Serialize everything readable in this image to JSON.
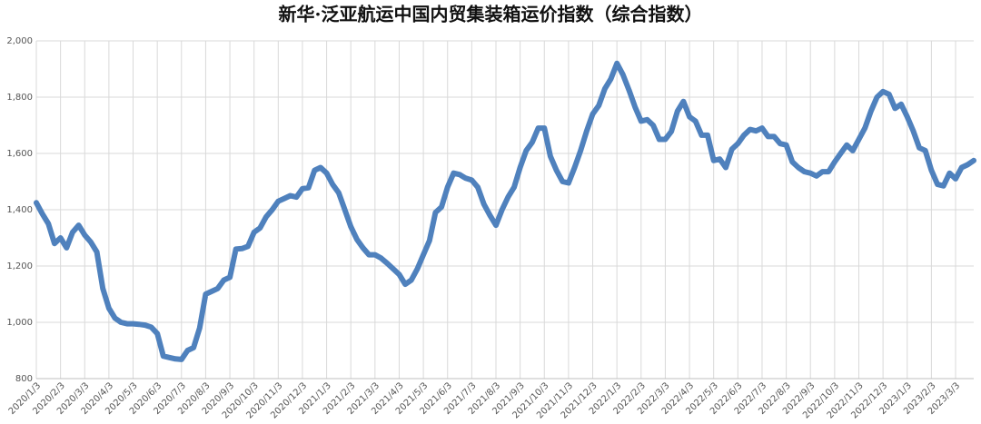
{
  "chart_data": {
    "type": "line",
    "title": "新华·泛亚航运中国内贸集装箱运价指数（综合指数）",
    "categories": [
      "2020/1/3",
      null,
      null,
      null,
      "2020/2/3",
      null,
      null,
      null,
      "2020/3/3",
      null,
      null,
      null,
      "2020/4/3",
      null,
      null,
      null,
      "2020/5/3",
      null,
      null,
      null,
      "2020/6/3",
      null,
      null,
      null,
      "2020/7/3",
      null,
      null,
      null,
      "2020/8/3",
      null,
      null,
      null,
      "2020/9/3",
      null,
      null,
      null,
      "2020/10/3",
      null,
      null,
      null,
      "2020/11/3",
      null,
      null,
      null,
      "2020/12/3",
      null,
      null,
      null,
      "2021/1/3",
      null,
      null,
      null,
      "2021/2/3",
      null,
      null,
      null,
      "2021/3/3",
      null,
      null,
      null,
      "2021/4/3",
      null,
      null,
      null,
      "2021/5/3",
      null,
      null,
      null,
      "2021/6/3",
      null,
      null,
      null,
      "2021/7/3",
      null,
      null,
      null,
      "2021/8/3",
      null,
      null,
      null,
      "2021/9/3",
      null,
      null,
      null,
      "2021/10/3",
      null,
      null,
      null,
      "2021/11/3",
      null,
      null,
      null,
      "2021/12/3",
      null,
      null,
      null,
      "2022/1/3",
      null,
      null,
      null,
      "2022/2/3",
      null,
      null,
      null,
      "2022/3/3",
      null,
      null,
      null,
      "2022/4/3",
      null,
      null,
      null,
      "2022/5/3",
      null,
      null,
      null,
      "2022/6/3",
      null,
      null,
      null,
      "2022/7/3",
      null,
      null,
      null,
      "2022/8/3",
      null,
      null,
      null,
      "2022/9/3",
      null,
      null,
      null,
      "2022/10/3",
      null,
      null,
      null,
      "2022/11/3",
      null,
      null,
      null,
      "2022/12/3",
      null,
      null,
      null,
      "2023/1/3",
      null,
      null,
      null,
      "2023/2/3",
      null,
      null,
      null,
      "2023/3/3",
      null,
      null,
      null
    ],
    "series": [
      {
        "name": "综合指数",
        "color": "#4f81bd",
        "values": [
          1425,
          1385,
          1350,
          1280,
          1300,
          1265,
          1320,
          1345,
          1310,
          1285,
          1250,
          1120,
          1050,
          1015,
          1000,
          995,
          995,
          993,
          990,
          983,
          960,
          880,
          875,
          870,
          868,
          900,
          910,
          980,
          1100,
          1110,
          1120,
          1150,
          1160,
          1260,
          1262,
          1270,
          1320,
          1335,
          1375,
          1400,
          1430,
          1440,
          1450,
          1445,
          1475,
          1478,
          1540,
          1550,
          1530,
          1490,
          1460,
          1400,
          1340,
          1295,
          1265,
          1240,
          1240,
          1228,
          1210,
          1190,
          1170,
          1135,
          1150,
          1190,
          1240,
          1290,
          1390,
          1410,
          1480,
          1530,
          1525,
          1512,
          1505,
          1480,
          1420,
          1380,
          1345,
          1400,
          1445,
          1480,
          1550,
          1610,
          1640,
          1690,
          1690,
          1590,
          1540,
          1500,
          1495,
          1550,
          1610,
          1680,
          1740,
          1770,
          1830,
          1865,
          1920,
          1880,
          1825,
          1765,
          1715,
          1720,
          1700,
          1650,
          1650,
          1678,
          1750,
          1785,
          1730,
          1715,
          1665,
          1665,
          1575,
          1580,
          1550,
          1615,
          1635,
          1665,
          1685,
          1680,
          1690,
          1660,
          1660,
          1635,
          1630,
          1570,
          1550,
          1535,
          1530,
          1520,
          1535,
          1535,
          1570,
          1600,
          1630,
          1610,
          1650,
          1690,
          1750,
          1800,
          1820,
          1810,
          1760,
          1775,
          1730,
          1680,
          1620,
          1610,
          1540,
          1490,
          1485,
          1530,
          1510,
          1550,
          1560,
          1575
        ]
      }
    ],
    "ylim": [
      800,
      2000
    ],
    "yticks": [
      800,
      {
        "value": 1000,
        "label": "1,000"
      },
      {
        "value": 1200,
        "label": "1,200"
      },
      {
        "value": 1400,
        "label": "1,400"
      },
      {
        "value": 1600,
        "label": "1,600"
      },
      {
        "value": 1800,
        "label": "1,800"
      },
      {
        "value": 2000,
        "label": "2,000"
      }
    ],
    "grid": true
  }
}
